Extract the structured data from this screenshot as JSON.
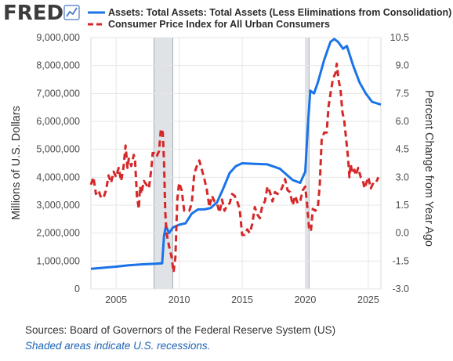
{
  "logo": {
    "text": "FRED",
    "icon": "line-chart-icon"
  },
  "legend": [
    {
      "label": "Assets: Total Assets: Total Assets (Less Eliminations from Consolidation)",
      "color": "#1a73e8",
      "style": "solid"
    },
    {
      "label": "Consumer Price Index for All Urban Consumers",
      "color": "#d62728",
      "style": "dashed"
    }
  ],
  "footer": {
    "sources": "Sources: Board of Governors of the Federal Reserve System (US)",
    "shaded": "Shaded areas indicate U.S. recessions."
  },
  "chart_data": {
    "type": "line",
    "xlim": [
      2003,
      2026
    ],
    "x_ticks": [
      "2005",
      "2010",
      "2015",
      "2020",
      "2025"
    ],
    "left_axis": {
      "label": "Millions of U.S. Dollars",
      "ylim": [
        0,
        9000000
      ],
      "ticks": [
        "0",
        "1,000,000",
        "2,000,000",
        "3,000,000",
        "4,000,000",
        "5,000,000",
        "6,000,000",
        "7,000,000",
        "8,000,000",
        "9,000,000"
      ]
    },
    "right_axis": {
      "label": "Percent Change from Year Ago",
      "ylim": [
        -3.0,
        10.5
      ],
      "ticks": [
        "-3.0",
        "-1.5",
        "0.0",
        "1.5",
        "3.0",
        "4.5",
        "6.0",
        "7.5",
        "9.0",
        "10.5"
      ]
    },
    "recessions": [
      [
        2008.0,
        2009.5
      ],
      [
        2020.0,
        2020.3
      ]
    ],
    "grid": true,
    "series": [
      {
        "name": "Assets: Total Assets: Total Assets (Less Eliminations from Consolidation)",
        "axis": "left",
        "color": "#1a73e8",
        "points": [
          [
            2003.0,
            720000
          ],
          [
            2004.0,
            760000
          ],
          [
            2005.0,
            800000
          ],
          [
            2006.0,
            850000
          ],
          [
            2007.0,
            880000
          ],
          [
            2008.0,
            900000
          ],
          [
            2008.65,
            920000
          ],
          [
            2008.8,
            1900000
          ],
          [
            2008.95,
            2250000
          ],
          [
            2009.2,
            2000000
          ],
          [
            2009.5,
            2200000
          ],
          [
            2010.0,
            2300000
          ],
          [
            2010.5,
            2350000
          ],
          [
            2011.0,
            2700000
          ],
          [
            2011.5,
            2850000
          ],
          [
            2012.0,
            2850000
          ],
          [
            2012.5,
            2900000
          ],
          [
            2013.0,
            3100000
          ],
          [
            2013.5,
            3600000
          ],
          [
            2014.0,
            4150000
          ],
          [
            2014.5,
            4400000
          ],
          [
            2015.0,
            4500000
          ],
          [
            2016.0,
            4480000
          ],
          [
            2017.0,
            4460000
          ],
          [
            2018.0,
            4300000
          ],
          [
            2019.0,
            3900000
          ],
          [
            2019.6,
            3800000
          ],
          [
            2020.0,
            4200000
          ],
          [
            2020.2,
            5800000
          ],
          [
            2020.4,
            7100000
          ],
          [
            2020.7,
            7000000
          ],
          [
            2021.0,
            7400000
          ],
          [
            2021.5,
            8200000
          ],
          [
            2022.0,
            8850000
          ],
          [
            2022.3,
            8950000
          ],
          [
            2022.6,
            8850000
          ],
          [
            2023.0,
            8600000
          ],
          [
            2023.3,
            8700000
          ],
          [
            2023.8,
            8000000
          ],
          [
            2024.3,
            7400000
          ],
          [
            2024.8,
            7000000
          ],
          [
            2025.3,
            6700000
          ],
          [
            2026.0,
            6600000
          ]
        ]
      },
      {
        "name": "Consumer Price Index for All Urban Consumers",
        "axis": "right",
        "color": "#d62728",
        "points": [
          [
            2003.0,
            2.6
          ],
          [
            2003.2,
            3.0
          ],
          [
            2003.4,
            2.1
          ],
          [
            2003.6,
            2.3
          ],
          [
            2003.8,
            1.9
          ],
          [
            2004.0,
            1.9
          ],
          [
            2004.2,
            2.3
          ],
          [
            2004.4,
            3.1
          ],
          [
            2004.6,
            2.7
          ],
          [
            2004.8,
            3.3
          ],
          [
            2005.0,
            3.0
          ],
          [
            2005.2,
            3.5
          ],
          [
            2005.4,
            2.8
          ],
          [
            2005.6,
            3.6
          ],
          [
            2005.75,
            4.7
          ],
          [
            2005.9,
            3.5
          ],
          [
            2006.0,
            4.0
          ],
          [
            2006.2,
            3.6
          ],
          [
            2006.4,
            4.2
          ],
          [
            2006.5,
            3.9
          ],
          [
            2006.65,
            2.0
          ],
          [
            2006.8,
            1.3
          ],
          [
            2006.9,
            2.5
          ],
          [
            2007.0,
            2.1
          ],
          [
            2007.2,
            2.8
          ],
          [
            2007.4,
            2.6
          ],
          [
            2007.6,
            2.4
          ],
          [
            2007.8,
            3.5
          ],
          [
            2007.9,
            4.3
          ],
          [
            2008.0,
            4.3
          ],
          [
            2008.2,
            4.1
          ],
          [
            2008.4,
            4.4
          ],
          [
            2008.55,
            5.6
          ],
          [
            2008.7,
            5.4
          ],
          [
            2008.8,
            3.8
          ],
          [
            2008.9,
            1.1
          ],
          [
            2009.0,
            0.0
          ],
          [
            2009.2,
            -0.7
          ],
          [
            2009.4,
            -1.3
          ],
          [
            2009.55,
            -2.1
          ],
          [
            2009.7,
            -1.3
          ],
          [
            2009.85,
            1.8
          ],
          [
            2010.0,
            2.7
          ],
          [
            2010.2,
            2.3
          ],
          [
            2010.4,
            1.2
          ],
          [
            2010.6,
            1.2
          ],
          [
            2010.8,
            1.2
          ],
          [
            2011.0,
            1.6
          ],
          [
            2011.2,
            3.2
          ],
          [
            2011.4,
            3.6
          ],
          [
            2011.6,
            3.9
          ],
          [
            2011.8,
            3.4
          ],
          [
            2012.0,
            2.9
          ],
          [
            2012.2,
            2.3
          ],
          [
            2012.4,
            1.4
          ],
          [
            2012.6,
            2.0
          ],
          [
            2012.8,
            1.7
          ],
          [
            2013.0,
            1.6
          ],
          [
            2013.2,
            1.1
          ],
          [
            2013.4,
            1.8
          ],
          [
            2013.6,
            1.2
          ],
          [
            2013.8,
            1.5
          ],
          [
            2014.0,
            1.6
          ],
          [
            2014.2,
            2.1
          ],
          [
            2014.4,
            2.0
          ],
          [
            2014.6,
            1.7
          ],
          [
            2014.8,
            1.3
          ],
          [
            2015.0,
            -0.1
          ],
          [
            2015.2,
            -0.1
          ],
          [
            2015.4,
            0.2
          ],
          [
            2015.6,
            0.0
          ],
          [
            2015.8,
            0.5
          ],
          [
            2016.0,
            1.4
          ],
          [
            2016.2,
            1.0
          ],
          [
            2016.4,
            0.8
          ],
          [
            2016.6,
            1.5
          ],
          [
            2016.8,
            1.7
          ],
          [
            2017.0,
            2.5
          ],
          [
            2017.2,
            2.2
          ],
          [
            2017.4,
            1.7
          ],
          [
            2017.6,
            2.2
          ],
          [
            2017.8,
            2.1
          ],
          [
            2018.0,
            2.2
          ],
          [
            2018.2,
            2.5
          ],
          [
            2018.4,
            2.9
          ],
          [
            2018.6,
            2.3
          ],
          [
            2018.8,
            2.2
          ],
          [
            2019.0,
            1.5
          ],
          [
            2019.2,
            2.0
          ],
          [
            2019.4,
            1.6
          ],
          [
            2019.6,
            1.7
          ],
          [
            2019.8,
            2.3
          ],
          [
            2020.0,
            2.5
          ],
          [
            2020.15,
            1.5
          ],
          [
            2020.3,
            0.3
          ],
          [
            2020.45,
            0.1
          ],
          [
            2020.6,
            1.3
          ],
          [
            2020.8,
            1.2
          ],
          [
            2021.0,
            1.4
          ],
          [
            2021.15,
            2.6
          ],
          [
            2021.3,
            5.0
          ],
          [
            2021.5,
            5.4
          ],
          [
            2021.7,
            5.4
          ],
          [
            2021.85,
            6.8
          ],
          [
            2022.0,
            7.5
          ],
          [
            2022.2,
            8.3
          ],
          [
            2022.4,
            8.6
          ],
          [
            2022.5,
            9.1
          ],
          [
            2022.65,
            8.2
          ],
          [
            2022.8,
            7.7
          ],
          [
            2022.95,
            6.5
          ],
          [
            2023.1,
            6.0
          ],
          [
            2023.25,
            5.0
          ],
          [
            2023.4,
            4.0
          ],
          [
            2023.5,
            3.0
          ],
          [
            2023.6,
            3.7
          ],
          [
            2023.75,
            3.2
          ],
          [
            2023.9,
            3.4
          ],
          [
            2024.0,
            3.1
          ],
          [
            2024.2,
            3.5
          ],
          [
            2024.4,
            3.0
          ],
          [
            2024.55,
            2.9
          ],
          [
            2024.7,
            2.4
          ],
          [
            2024.85,
            2.7
          ],
          [
            2025.0,
            3.0
          ],
          [
            2025.2,
            2.4
          ],
          [
            2025.4,
            2.7
          ],
          [
            2025.6,
            2.7
          ],
          [
            2025.8,
            3.0
          ]
        ]
      }
    ]
  }
}
